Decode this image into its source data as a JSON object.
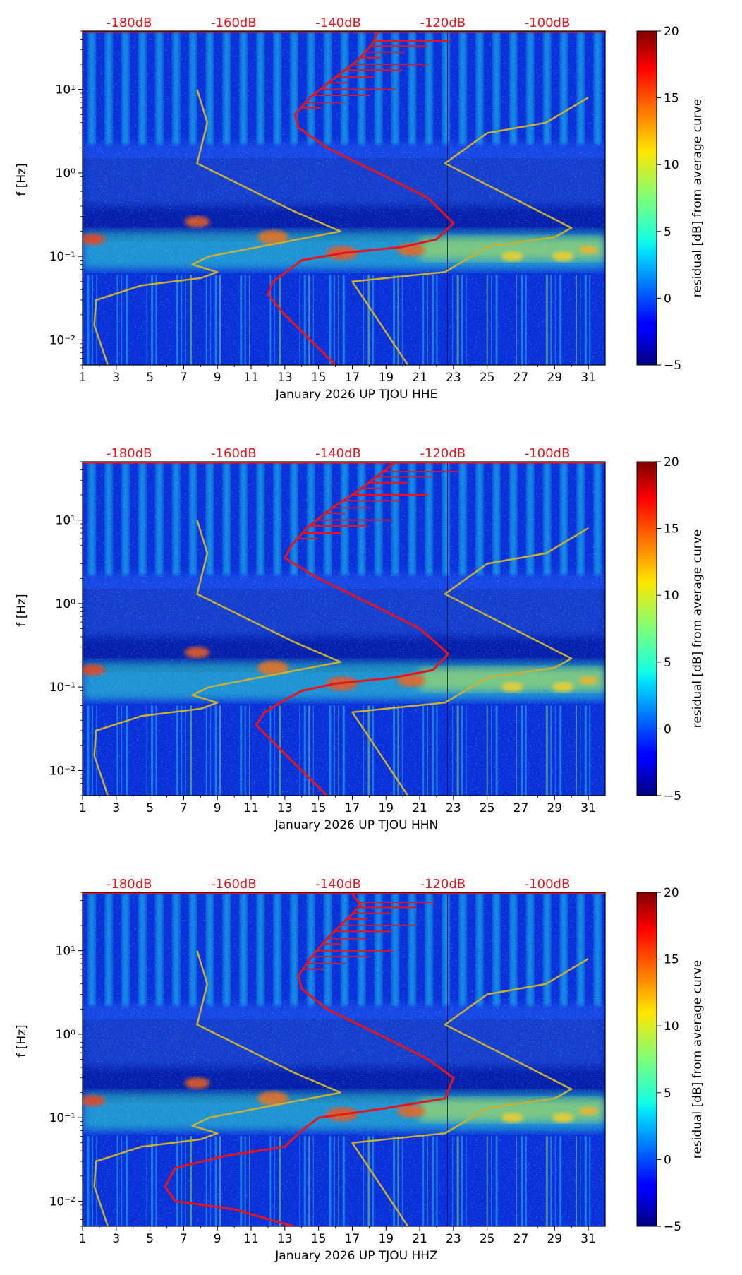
{
  "figure": {
    "colorbar_label": "residual [dB] from average curve",
    "colorbar_ticks": [
      "−5",
      "0",
      "5",
      "10",
      "15",
      "20"
    ],
    "colorbar_values": [
      -5,
      0,
      5,
      10,
      15,
      20
    ]
  },
  "chart_data": [
    {
      "type": "heatmap",
      "title": "",
      "xlabel": "January 2026 UP TJOU  HHE",
      "ylabel": "f [Hz]",
      "x_range": [
        1,
        32
      ],
      "x_ticks": [
        "1",
        "3",
        "5",
        "7",
        "9",
        "11",
        "13",
        "15",
        "17",
        "19",
        "21",
        "23",
        "25",
        "27",
        "29",
        "31"
      ],
      "y_range_hz": [
        0.005,
        50
      ],
      "y_scale": "log",
      "y_ticks": [
        "10⁻²",
        "10⁻¹",
        "10⁰",
        "10¹"
      ],
      "colorbar_range_db": [
        -5,
        20
      ],
      "db_scale_labels": [
        "-180dB",
        "-160dB",
        "-140dB",
        "-120dB",
        "-100dB"
      ],
      "series": [
        {
          "name": "average PSD (red)",
          "color": "#e8141c",
          "points": [
            [
              16.0,
              0.005
            ],
            [
              14.5,
              0.01
            ],
            [
              13.0,
              0.02
            ],
            [
              12.0,
              0.035
            ],
            [
              12.3,
              0.05
            ],
            [
              13.3,
              0.07
            ],
            [
              14.0,
              0.09
            ],
            [
              16.5,
              0.11
            ],
            [
              20.0,
              0.13
            ],
            [
              22.0,
              0.16
            ],
            [
              23.0,
              0.25
            ],
            [
              21.5,
              0.5
            ],
            [
              19.0,
              0.9
            ],
            [
              15.5,
              2.0
            ],
            [
              13.8,
              3.5
            ],
            [
              13.6,
              5.0
            ],
            [
              14.5,
              8.0
            ],
            [
              16.0,
              14.0
            ],
            [
              17.3,
              22.0
            ],
            [
              18.2,
              35.0
            ],
            [
              18.5,
              48.0
            ]
          ]
        },
        {
          "name": "noise model (yellow)",
          "color": "#c8b032",
          "points": [
            [
              2.5,
              0.005
            ],
            [
              1.7,
              0.015
            ],
            [
              1.8,
              0.03
            ],
            [
              4.5,
              0.045
            ],
            [
              8.0,
              0.055
            ],
            [
              9.0,
              0.065
            ],
            [
              7.5,
              0.08
            ],
            [
              8.5,
              0.1
            ],
            [
              16.3,
              0.2
            ],
            [
              13.5,
              0.35
            ],
            [
              7.8,
              1.3
            ],
            [
              8.4,
              4.0
            ],
            [
              7.8,
              10.0
            ]
          ]
        },
        {
          "name": "noise model right (yellow)",
          "color": "#c8b032",
          "points": [
            [
              20.3,
              0.005
            ],
            [
              17.0,
              0.05
            ],
            [
              22.5,
              0.065
            ],
            [
              25.0,
              0.13
            ],
            [
              29.0,
              0.17
            ],
            [
              30.0,
              0.22
            ],
            [
              22.5,
              1.3
            ],
            [
              25.0,
              3.0
            ],
            [
              28.5,
              4.0
            ],
            [
              31.0,
              8.0
            ]
          ]
        }
      ]
    },
    {
      "type": "heatmap",
      "title": "",
      "xlabel": "January 2026 UP TJOU  HHN",
      "ylabel": "f [Hz]",
      "x_range": [
        1,
        32
      ],
      "x_ticks": [
        "1",
        "3",
        "5",
        "7",
        "9",
        "11",
        "13",
        "15",
        "17",
        "19",
        "21",
        "23",
        "25",
        "27",
        "29",
        "31"
      ],
      "y_range_hz": [
        0.005,
        50
      ],
      "y_scale": "log",
      "y_ticks": [
        "10⁻²",
        "10⁻¹",
        "10⁰",
        "10¹"
      ],
      "colorbar_range_db": [
        -5,
        20
      ],
      "db_scale_labels": [
        "-180dB",
        "-160dB",
        "-140dB",
        "-120dB",
        "-100dB"
      ],
      "series": [
        {
          "name": "average PSD (red)",
          "color": "#e8141c",
          "points": [
            [
              15.5,
              0.005
            ],
            [
              14.0,
              0.01
            ],
            [
              12.5,
              0.02
            ],
            [
              11.3,
              0.035
            ],
            [
              11.8,
              0.05
            ],
            [
              13.0,
              0.07
            ],
            [
              14.0,
              0.09
            ],
            [
              16.0,
              0.11
            ],
            [
              19.5,
              0.13
            ],
            [
              21.8,
              0.16
            ],
            [
              22.7,
              0.25
            ],
            [
              21.0,
              0.5
            ],
            [
              18.5,
              0.9
            ],
            [
              15.0,
              2.0
            ],
            [
              13.0,
              3.5
            ],
            [
              13.4,
              5.0
            ],
            [
              14.3,
              8.0
            ],
            [
              15.8,
              14.0
            ],
            [
              17.3,
              22.0
            ],
            [
              18.6,
              35.0
            ],
            [
              19.5,
              48.0
            ]
          ]
        },
        {
          "name": "noise model (yellow)",
          "color": "#c8b032",
          "points": [
            [
              2.5,
              0.005
            ],
            [
              1.7,
              0.015
            ],
            [
              1.8,
              0.03
            ],
            [
              4.5,
              0.045
            ],
            [
              8.0,
              0.055
            ],
            [
              9.0,
              0.065
            ],
            [
              7.5,
              0.08
            ],
            [
              8.5,
              0.1
            ],
            [
              16.3,
              0.2
            ],
            [
              13.5,
              0.35
            ],
            [
              7.8,
              1.3
            ],
            [
              8.4,
              4.0
            ],
            [
              7.8,
              10.0
            ]
          ]
        },
        {
          "name": "noise model right (yellow)",
          "color": "#c8b032",
          "points": [
            [
              20.3,
              0.005
            ],
            [
              17.0,
              0.05
            ],
            [
              22.5,
              0.065
            ],
            [
              25.0,
              0.13
            ],
            [
              29.0,
              0.17
            ],
            [
              30.0,
              0.22
            ],
            [
              22.5,
              1.3
            ],
            [
              25.0,
              3.0
            ],
            [
              28.5,
              4.0
            ],
            [
              31.0,
              8.0
            ]
          ]
        }
      ]
    },
    {
      "type": "heatmap",
      "title": "",
      "xlabel": "January 2026 UP TJOU  HHZ",
      "ylabel": "f [Hz]",
      "x_range": [
        1,
        32
      ],
      "x_ticks": [
        "1",
        "3",
        "5",
        "7",
        "9",
        "11",
        "13",
        "15",
        "17",
        "19",
        "21",
        "23",
        "25",
        "27",
        "29",
        "31"
      ],
      "y_range_hz": [
        0.005,
        50
      ],
      "y_scale": "log",
      "y_ticks": [
        "10⁻²",
        "10⁻¹",
        "10⁰",
        "10¹"
      ],
      "colorbar_range_db": [
        -5,
        20
      ],
      "db_scale_labels": [
        "-180dB",
        "-160dB",
        "-140dB",
        "-120dB",
        "-100dB"
      ],
      "series": [
        {
          "name": "average PSD (red)",
          "color": "#e8141c",
          "points": [
            [
              13.5,
              0.005
            ],
            [
              10.0,
              0.008
            ],
            [
              6.5,
              0.01
            ],
            [
              5.9,
              0.015
            ],
            [
              6.5,
              0.025
            ],
            [
              9.5,
              0.035
            ],
            [
              13.0,
              0.045
            ],
            [
              14.0,
              0.07
            ],
            [
              15.0,
              0.1
            ],
            [
              19.0,
              0.13
            ],
            [
              22.5,
              0.17
            ],
            [
              23.0,
              0.3
            ],
            [
              21.5,
              0.5
            ],
            [
              19.0,
              0.9
            ],
            [
              15.5,
              2.0
            ],
            [
              14.0,
              3.5
            ],
            [
              13.8,
              5.0
            ],
            [
              14.5,
              8.0
            ],
            [
              15.5,
              14.0
            ],
            [
              16.5,
              22.0
            ],
            [
              17.5,
              35.0
            ],
            [
              17.0,
              48.0
            ]
          ]
        },
        {
          "name": "noise model (yellow)",
          "color": "#c8b032",
          "points": [
            [
              2.5,
              0.005
            ],
            [
              1.7,
              0.015
            ],
            [
              1.8,
              0.03
            ],
            [
              4.5,
              0.045
            ],
            [
              8.0,
              0.055
            ],
            [
              9.0,
              0.065
            ],
            [
              7.5,
              0.08
            ],
            [
              8.5,
              0.1
            ],
            [
              16.3,
              0.2
            ],
            [
              13.5,
              0.35
            ],
            [
              7.8,
              1.3
            ],
            [
              8.4,
              4.0
            ],
            [
              7.8,
              10.0
            ]
          ]
        },
        {
          "name": "noise model right (yellow)",
          "color": "#c8b032",
          "points": [
            [
              20.3,
              0.005
            ],
            [
              17.0,
              0.05
            ],
            [
              22.5,
              0.065
            ],
            [
              25.0,
              0.13
            ],
            [
              29.0,
              0.17
            ],
            [
              30.0,
              0.22
            ],
            [
              22.5,
              1.3
            ],
            [
              25.0,
              3.0
            ],
            [
              28.5,
              4.0
            ],
            [
              31.0,
              8.0
            ]
          ]
        }
      ]
    }
  ]
}
